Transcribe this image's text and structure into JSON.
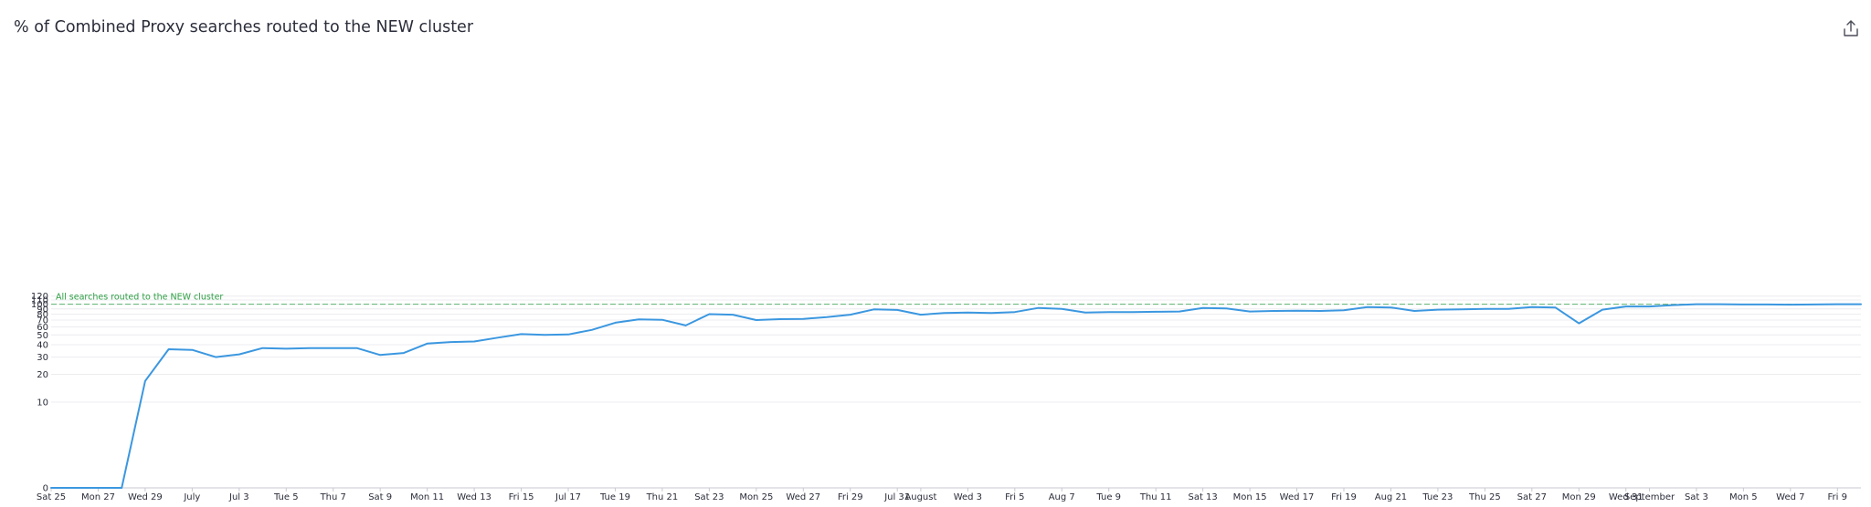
{
  "title": "% of Combined Proxy searches routed to the NEW cluster",
  "actions": {
    "share_icon": "share-export-icon"
  },
  "chart_data": {
    "type": "line",
    "title": "% of Combined Proxy searches routed to the NEW cluster",
    "xlabel": "",
    "ylabel": "",
    "y_scale": "symlog",
    "ylim": [
      0,
      120
    ],
    "y_ticks": [
      0,
      10,
      20,
      30,
      40,
      50,
      60,
      70,
      80,
      90,
      100,
      110,
      120
    ],
    "x_tick_labels": [
      "Sat 25",
      "Mon 27",
      "Wed 29",
      "July",
      "Jul 3",
      "Tue 5",
      "Thu 7",
      "Sat 9",
      "Mon 11",
      "Wed 13",
      "Fri 15",
      "Jul 17",
      "Tue 19",
      "Thu 21",
      "Sat 23",
      "Mon 25",
      "Wed 27",
      "Fri 29",
      "Jul 31",
      "August",
      "Wed 3",
      "Fri 5",
      "Aug 7",
      "Tue 9",
      "Thu 11",
      "Sat 13",
      "Mon 15",
      "Wed 17",
      "Fri 19",
      "Aug 21",
      "Tue 23",
      "Thu 25",
      "Sat 27",
      "Mon 29",
      "Wed 31",
      "September",
      "Sat 3",
      "Mon 5",
      "Wed 7",
      "Fri 9"
    ],
    "x_tick_days": [
      0,
      2,
      4,
      6,
      8,
      10,
      12,
      14,
      16,
      18,
      20,
      22,
      24,
      26,
      28,
      30,
      32,
      34,
      36,
      37,
      39,
      41,
      43,
      45,
      47,
      49,
      51,
      53,
      55,
      57,
      59,
      61,
      63,
      65,
      67,
      68,
      70,
      72,
      74,
      76
    ],
    "x_range": [
      0,
      77
    ],
    "grid": true,
    "legend": "none",
    "reference_line": {
      "value": 100,
      "label": "All searches routed to the NEW cluster",
      "color": "#2ea043"
    },
    "series": [
      {
        "color": "#3b97e0",
        "x": [
          0,
          1,
          2,
          3,
          4,
          5,
          6,
          7,
          8,
          9,
          10,
          11,
          12,
          13,
          14,
          15,
          16,
          17,
          18,
          19,
          20,
          21,
          22,
          23,
          24,
          25,
          26,
          27,
          28,
          29,
          30,
          31,
          32,
          33,
          34,
          35,
          36,
          37,
          38,
          39,
          40,
          41,
          42,
          43,
          44,
          45,
          46,
          47,
          48,
          49,
          50,
          51,
          52,
          53,
          54,
          55,
          56,
          57,
          58,
          59,
          60,
          61,
          62,
          63,
          64,
          65,
          66,
          67,
          68,
          69,
          70,
          71,
          72,
          73,
          74,
          75,
          76,
          77
        ],
        "y": [
          0,
          0,
          0,
          0,
          17,
          36,
          35.5,
          30,
          32,
          37,
          36.5,
          37,
          37,
          37,
          31.5,
          33,
          41,
          42.5,
          43,
          47,
          51,
          50,
          50.5,
          56,
          66,
          71,
          70.5,
          62,
          80,
          79,
          70,
          71.5,
          72,
          75,
          79,
          89,
          88,
          79,
          82,
          83,
          82,
          84,
          92,
          90,
          83,
          84,
          84,
          84.5,
          85,
          92,
          91,
          85,
          86,
          86.5,
          86,
          87.5,
          94,
          93,
          86,
          88.5,
          89,
          90,
          90,
          94,
          93,
          65,
          88.5,
          95,
          95,
          98,
          100,
          100,
          99.5,
          99.5,
          99,
          99.5,
          100,
          100
        ]
      }
    ]
  }
}
